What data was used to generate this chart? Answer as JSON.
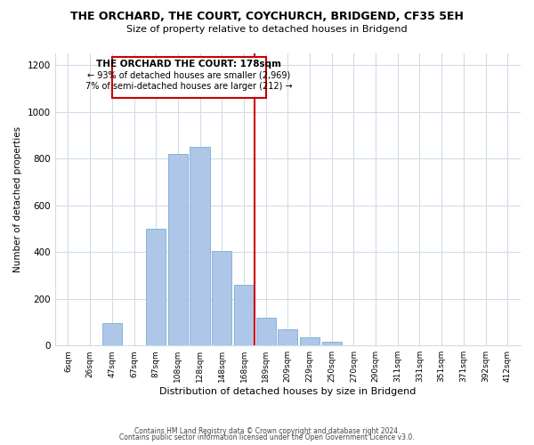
{
  "title": "THE ORCHARD, THE COURT, COYCHURCH, BRIDGEND, CF35 5EH",
  "subtitle": "Size of property relative to detached houses in Bridgend",
  "xlabel": "Distribution of detached houses by size in Bridgend",
  "ylabel": "Number of detached properties",
  "bin_labels": [
    "6sqm",
    "26sqm",
    "47sqm",
    "67sqm",
    "87sqm",
    "108sqm",
    "128sqm",
    "148sqm",
    "168sqm",
    "189sqm",
    "209sqm",
    "229sqm",
    "250sqm",
    "270sqm",
    "290sqm",
    "311sqm",
    "331sqm",
    "351sqm",
    "371sqm",
    "392sqm",
    "412sqm"
  ],
  "bar_heights": [
    0,
    0,
    95,
    0,
    500,
    820,
    850,
    405,
    260,
    120,
    70,
    35,
    15,
    0,
    0,
    0,
    0,
    0,
    0,
    0,
    0
  ],
  "bar_color": "#aec6e8",
  "bar_edge_color": "#7aadd4",
  "vline_x_index": 8.5,
  "vline_color": "#cc0000",
  "annotation_title": "THE ORCHARD THE COURT: 178sqm",
  "annotation_line1": "← 93% of detached houses are smaller (2,969)",
  "annotation_line2": "7% of semi-detached houses are larger (212) →",
  "annotation_box_color": "#ffffff",
  "annotation_box_edge": "#cc0000",
  "ylim": [
    0,
    1250
  ],
  "yticks": [
    0,
    200,
    400,
    600,
    800,
    1000,
    1200
  ],
  "footer1": "Contains HM Land Registry data © Crown copyright and database right 2024.",
  "footer2": "Contains public sector information licensed under the Open Government Licence v3.0.",
  "background_color": "#ffffff",
  "grid_color": "#d0dce8"
}
